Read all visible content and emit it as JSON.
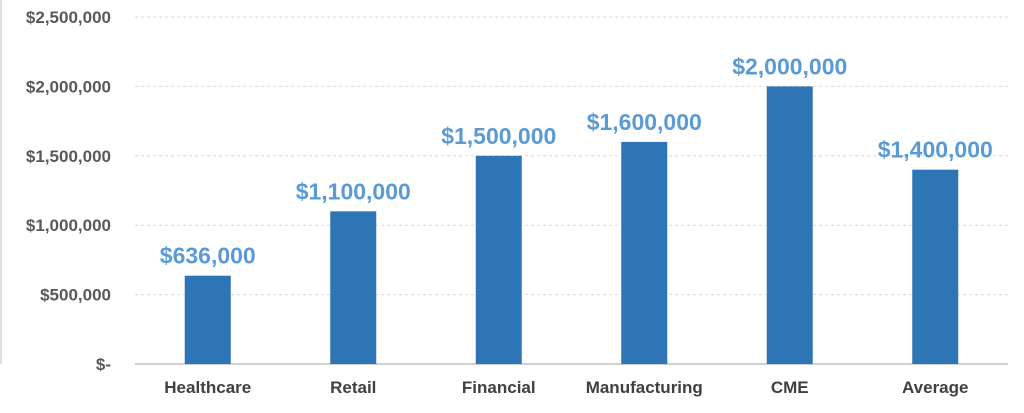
{
  "chart_data": {
    "type": "bar",
    "categories": [
      "Healthcare",
      "Retail",
      "Financial",
      "Manufacturing",
      "CME",
      "Average"
    ],
    "values": [
      636000,
      1100000,
      1500000,
      1600000,
      2000000,
      1400000
    ],
    "data_labels": [
      "$636,000",
      "$1,100,000",
      "$1,500,000",
      "$1,600,000",
      "$2,000,000",
      "$1,400,000"
    ],
    "y_ticks": [
      0,
      500000,
      1000000,
      1500000,
      2000000,
      2500000
    ],
    "y_tick_labels": [
      "$-",
      "$500,000",
      "$1,000,000",
      "$1,500,000",
      "$2,000,000",
      "$2,500,000"
    ],
    "ylim": [
      0,
      2500000
    ],
    "grid": true,
    "legend": "none",
    "title": "",
    "xlabel": "",
    "ylabel": ""
  },
  "colors": {
    "bar": "#2E75B6",
    "data_label": "#5B9BD5",
    "grid": "#D9D9D9",
    "axis": "#BFBFBF"
  }
}
